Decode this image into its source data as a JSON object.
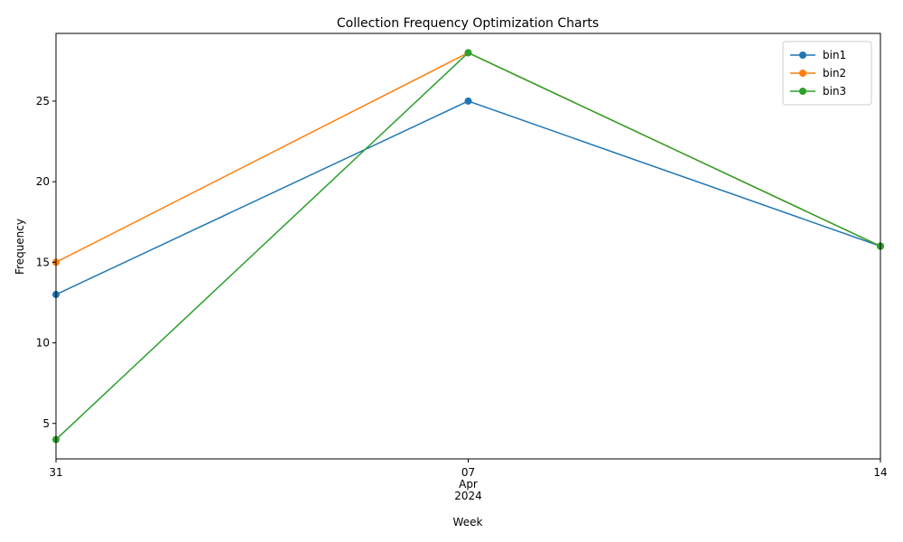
{
  "chart_data": {
    "type": "line",
    "title": "Collection Frequency Optimization Charts",
    "xlabel": "Week",
    "ylabel": "Frequency",
    "x": [
      "2024-03-31",
      "2024-04-07",
      "2024-04-14"
    ],
    "x_tick_labels": [
      {
        "lines": [
          "31"
        ]
      },
      {
        "lines": [
          "07",
          "Apr",
          "2024"
        ]
      },
      {
        "lines": [
          "14"
        ]
      }
    ],
    "yticks": [
      5,
      10,
      15,
      20,
      25
    ],
    "ylim": [
      2.8,
      29.2
    ],
    "grid": false,
    "legend_position": "top-right",
    "series": [
      {
        "name": "bin1",
        "color": "#1f77b4",
        "values": [
          13,
          25,
          16
        ]
      },
      {
        "name": "bin2",
        "color": "#ff7f0e",
        "values": [
          15,
          28,
          16
        ]
      },
      {
        "name": "bin3",
        "color": "#2ca02c",
        "values": [
          4,
          28,
          16
        ]
      }
    ]
  }
}
